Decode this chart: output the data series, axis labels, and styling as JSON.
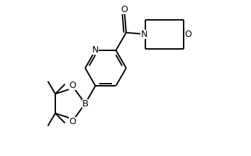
{
  "bg_color": "#ffffff",
  "line_color": "#000000",
  "line_width": 1.4,
  "font_size": 8.5,
  "figsize": [
    3.54,
    2.2
  ],
  "dpi": 100,
  "xlim": [
    -3.0,
    4.2
  ],
  "ylim": [
    -2.6,
    2.0
  ]
}
